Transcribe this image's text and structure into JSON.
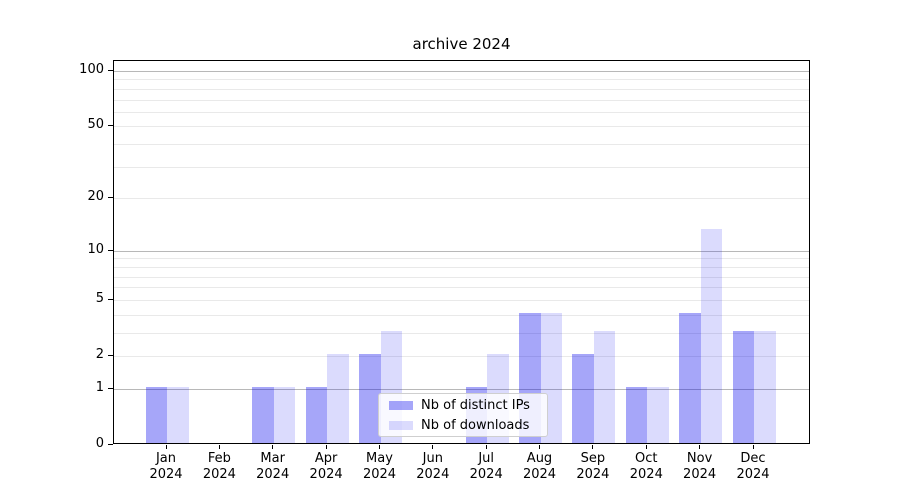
{
  "title": "archive 2024",
  "legend": {
    "items": [
      {
        "label": "Nb of distinct IPs",
        "color": "rgba(0,0,238,0.35)"
      },
      {
        "label": "Nb of downloads",
        "color": "rgba(0,0,238,0.14)"
      }
    ]
  },
  "axes": {
    "year_label": "2024",
    "months": [
      "Jan",
      "Feb",
      "Mar",
      "Apr",
      "May",
      "Jun",
      "Jul",
      "Aug",
      "Sep",
      "Oct",
      "Nov",
      "Dec"
    ],
    "y_tick_labels": [
      "100",
      "50",
      "20",
      "10",
      "5",
      "2",
      "1",
      "0"
    ],
    "y_tick_values": [
      100,
      50,
      20,
      10,
      5,
      2,
      1,
      0
    ]
  },
  "chart_data": {
    "type": "bar",
    "title": "archive 2024",
    "categories": [
      "Jan 2024",
      "Feb 2024",
      "Mar 2024",
      "Apr 2024",
      "May 2024",
      "Jun 2024",
      "Jul 2024",
      "Aug 2024",
      "Sep 2024",
      "Oct 2024",
      "Nov 2024",
      "Dec 2024"
    ],
    "series": [
      {
        "name": "Nb of distinct IPs",
        "key": "distinct-ips",
        "values": [
          1,
          0,
          1,
          1,
          2,
          0,
          1,
          4,
          2,
          1,
          4,
          3
        ]
      },
      {
        "name": "Nb of downloads",
        "key": "downloads",
        "values": [
          1,
          0,
          1,
          2,
          3,
          0,
          2,
          4,
          3,
          1,
          13,
          3
        ]
      }
    ],
    "xlabel": "",
    "ylabel": "",
    "yscale": "log10(1+v)",
    "ylim": [
      0,
      113
    ],
    "yticks": [
      0,
      1,
      2,
      5,
      10,
      20,
      50,
      100
    ],
    "major_gridlines": [
      1,
      10,
      100
    ],
    "minor_gridlines": [
      2,
      3,
      4,
      5,
      6,
      7,
      8,
      9,
      20,
      30,
      40,
      50,
      60,
      70,
      80,
      90
    ],
    "grid": true,
    "legend_position": "lower center-right inside plot"
  },
  "colors": {
    "bar_dark": "rgba(0,0,238,0.35)",
    "bar_light": "rgba(0,0,238,0.14)",
    "grid_major": "#b8b8b8",
    "grid_minor": "#e9e9e9",
    "spine": "#000000",
    "background": "#ffffff"
  }
}
